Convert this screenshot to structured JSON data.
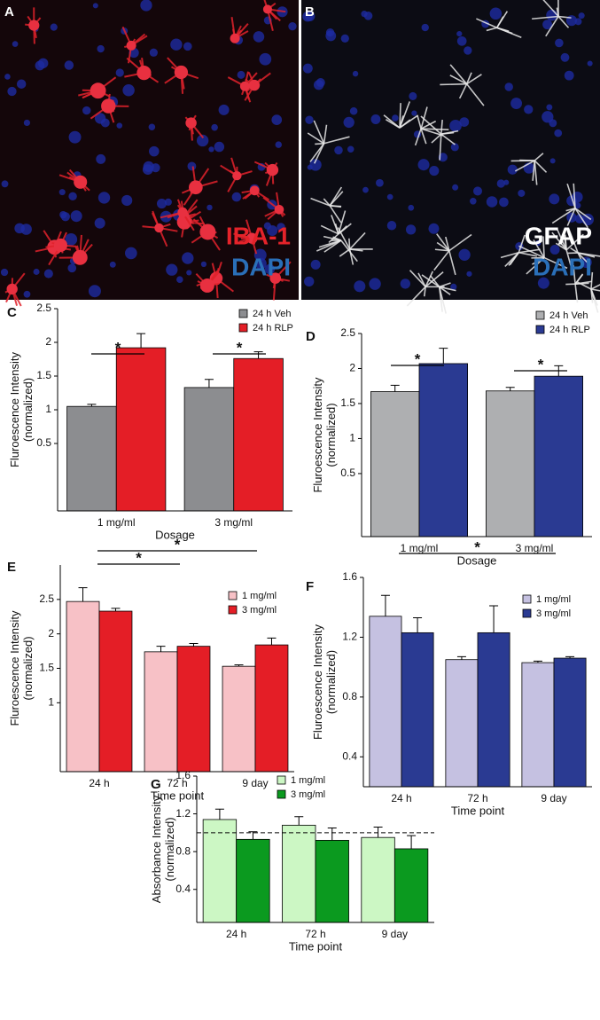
{
  "images": [
    {
      "letter": "A",
      "stain": "IBA-1",
      "counterstain": "DAPI"
    },
    {
      "letter": "B",
      "stain": "GFAP",
      "counterstain": "DAPI"
    }
  ],
  "chart_data": [
    {
      "type": "bar",
      "panel": "C",
      "y_label": [
        "Fluroescence Intensity",
        "(normalized)"
      ],
      "x_label": "Dosage",
      "categories": [
        "1 mg/ml",
        "3 mg/ml"
      ],
      "series": [
        {
          "name": "24 h Veh",
          "color": "#8c8d90",
          "values": [
            1.05,
            1.33
          ],
          "errors": [
            0.03,
            0.12
          ]
        },
        {
          "name": "24 h RLP",
          "color": "#e41e26",
          "values": [
            1.92,
            1.76
          ],
          "errors": [
            0.21,
            0.1
          ]
        }
      ],
      "ylim": [
        -0.5,
        2.5
      ],
      "yticks": [
        0.5,
        1,
        1.5,
        2,
        2.5
      ],
      "annotations": [
        "*",
        "*"
      ]
    },
    {
      "type": "bar",
      "panel": "D",
      "y_label": [
        "Fluroescence Intensity",
        "(normalized)"
      ],
      "x_label": "Dosage",
      "categories": [
        "1 mg/ml",
        "3 mg/ml"
      ],
      "series": [
        {
          "name": "24 h Veh",
          "color": "#aeafb1",
          "values": [
            1.67,
            1.68
          ],
          "errors": [
            0.09,
            0.05
          ]
        },
        {
          "name": "24 h RLP",
          "color": "#2a3a92",
          "values": [
            2.07,
            1.89
          ],
          "errors": [
            0.22,
            0.15
          ]
        }
      ],
      "ylim": [
        -0.4,
        2.5
      ],
      "yticks": [
        0.5,
        1,
        1.5,
        2,
        2.5
      ],
      "annotations": [
        "*",
        "*"
      ]
    },
    {
      "type": "bar",
      "panel": "E",
      "y_label": [
        "Fluroescence Intensity",
        "(normalized)"
      ],
      "x_label": "Time point",
      "categories": [
        "24 h",
        "72 h",
        "9 day"
      ],
      "series": [
        {
          "name": "1 mg/ml",
          "color": "#f7c1c6",
          "values": [
            2.47,
            1.74,
            1.53
          ],
          "errors": [
            0.2,
            0.08,
            0.02
          ]
        },
        {
          "name": "3 mg/ml",
          "color": "#e41e26",
          "values": [
            2.33,
            1.82,
            1.84
          ],
          "errors": [
            0.04,
            0.04,
            0.1
          ]
        }
      ],
      "ylim": [
        0,
        3
      ],
      "yticks": [
        1,
        1.5,
        2,
        2.5
      ],
      "annotations": [
        "*",
        "*"
      ]
    },
    {
      "type": "bar",
      "panel": "F",
      "y_label": [
        "Fluroescence Intensity",
        "(normalized)"
      ],
      "x_label": "Time point",
      "categories": [
        "24 h",
        "72 h",
        "9 day"
      ],
      "series": [
        {
          "name": "1 mg/ml",
          "color": "#c5c1e1",
          "values": [
            1.34,
            1.05,
            1.03
          ],
          "errors": [
            0.14,
            0.02,
            0.01
          ]
        },
        {
          "name": "3 mg/ml",
          "color": "#2a3a92",
          "values": [
            1.23,
            1.23,
            1.06
          ],
          "errors": [
            0.1,
            0.18,
            0.01
          ]
        }
      ],
      "ylim": [
        0.2,
        1.6
      ],
      "yticks": [
        0.4,
        0.8,
        1.2,
        1.6
      ],
      "annotations": [
        "*"
      ]
    },
    {
      "type": "bar",
      "panel": "G",
      "y_label": [
        "Absorbance Intensity",
        "(normalized)"
      ],
      "x_label": "Time point",
      "categories": [
        "24 h",
        "72 h",
        "9 day"
      ],
      "series": [
        {
          "name": "1 mg/ml",
          "color": "#ccf7c4",
          "values": [
            1.14,
            1.08,
            0.95
          ],
          "errors": [
            0.11,
            0.09,
            0.11
          ]
        },
        {
          "name": "3 mg/ml",
          "color": "#0b9a1f",
          "values": [
            0.93,
            0.92,
            0.83
          ],
          "errors": [
            0.08,
            0.13,
            0.14
          ]
        }
      ],
      "ylim": [
        0.05,
        1.6
      ],
      "yticks": [
        0.4,
        0.8,
        1.2,
        1.6
      ],
      "reference_line": 1
    }
  ]
}
